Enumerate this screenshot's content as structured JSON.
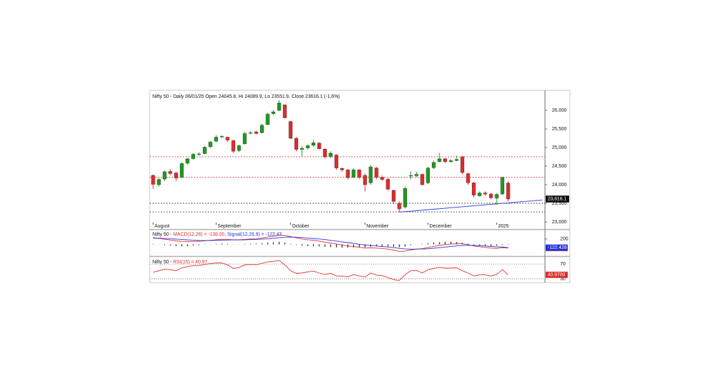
{
  "chart_data": [
    {
      "type": "candlestick",
      "title": "Nifty 50 - Daily 06/01/25 Open 24045.8, Hi 24089.9, Lo 23551.9, Close 23616.1 (-1.6%)",
      "categories": [
        "August",
        null,
        null,
        null,
        null,
        null,
        null,
        null,
        null,
        null,
        null,
        "September",
        null,
        null,
        null,
        null,
        null,
        null,
        null,
        null,
        null,
        null,
        null,
        null,
        "October",
        null,
        null,
        null,
        null,
        null,
        null,
        null,
        null,
        null,
        null,
        null,
        null,
        "November",
        null,
        null,
        null,
        null,
        null,
        null,
        null,
        null,
        null,
        null,
        "December",
        null,
        null,
        null,
        null,
        null,
        null,
        null,
        null,
        null,
        null,
        null,
        "2025",
        null,
        null
      ],
      "ohlc": [
        [
          24250,
          24280,
          23890,
          24010
        ],
        [
          24000,
          24180,
          23950,
          24140
        ],
        [
          24150,
          24380,
          24100,
          24350
        ],
        [
          24360,
          24420,
          24250,
          24300
        ],
        [
          24320,
          24340,
          24100,
          24180
        ],
        [
          24200,
          24600,
          24180,
          24570
        ],
        [
          24580,
          24720,
          24540,
          24700
        ],
        [
          24700,
          24850,
          24680,
          24820
        ],
        [
          24830,
          24870,
          24780,
          24830
        ],
        [
          24840,
          25040,
          24820,
          25010
        ],
        [
          25020,
          25170,
          24990,
          25150
        ],
        [
          25170,
          25330,
          25140,
          25280
        ],
        [
          25290,
          25330,
          25250,
          25300
        ],
        [
          25280,
          25290,
          25150,
          25200
        ],
        [
          25190,
          25200,
          24850,
          24900
        ],
        [
          24920,
          25080,
          24880,
          25050
        ],
        [
          25100,
          25420,
          25080,
          25380
        ],
        [
          25390,
          25440,
          25350,
          25400
        ],
        [
          25420,
          25450,
          25350,
          25380
        ],
        [
          25400,
          25640,
          25380,
          25600
        ],
        [
          25620,
          25930,
          25600,
          25900
        ],
        [
          25910,
          26010,
          25880,
          25960
        ],
        [
          26000,
          26277,
          25980,
          26200
        ],
        [
          26150,
          26160,
          25780,
          25800
        ],
        [
          25700,
          25720,
          25230,
          25250
        ],
        [
          25250,
          25280,
          24900,
          24950
        ],
        [
          24950,
          25030,
          24760,
          24980
        ],
        [
          24990,
          25090,
          24950,
          25050
        ],
        [
          25060,
          25200,
          25020,
          25130
        ],
        [
          25120,
          25150,
          24950,
          24970
        ],
        [
          24960,
          24980,
          24700,
          24750
        ],
        [
          24760,
          24900,
          24720,
          24850
        ],
        [
          24800,
          24820,
          24400,
          24450
        ],
        [
          24440,
          24460,
          24350,
          24400
        ],
        [
          24400,
          24420,
          24140,
          24190
        ],
        [
          24200,
          24440,
          24180,
          24400
        ],
        [
          24400,
          24420,
          24150,
          24200
        ],
        [
          24250,
          24300,
          23820,
          24000
        ],
        [
          24050,
          24530,
          24000,
          24480
        ],
        [
          24450,
          24480,
          24150,
          24200
        ],
        [
          24200,
          24250,
          24100,
          24140
        ],
        [
          24150,
          24170,
          23840,
          23880
        ],
        [
          23850,
          23870,
          23480,
          23550
        ],
        [
          23500,
          23560,
          23263,
          23350
        ],
        [
          23400,
          23950,
          23360,
          23900
        ],
        [
          24250,
          24350,
          24150,
          24250
        ],
        [
          24240,
          24350,
          24200,
          24280
        ],
        [
          24280,
          24300,
          23980,
          24000
        ],
        [
          24050,
          24480,
          24020,
          24450
        ],
        [
          24460,
          24650,
          24420,
          24600
        ],
        [
          24620,
          24857,
          24600,
          24700
        ],
        [
          24700,
          24720,
          24580,
          24620
        ],
        [
          24620,
          24690,
          24600,
          24650
        ],
        [
          24650,
          24780,
          24630,
          24680
        ],
        [
          24750,
          24780,
          24280,
          24330
        ],
        [
          24300,
          24320,
          24000,
          24050
        ],
        [
          24050,
          24080,
          23650,
          23720
        ],
        [
          23700,
          23820,
          23680,
          23780
        ],
        [
          23780,
          23820,
          23700,
          23750
        ],
        [
          23750,
          23780,
          23600,
          23650
        ],
        [
          23640,
          23780,
          23460,
          23740
        ],
        [
          23750,
          24220,
          23730,
          24190
        ],
        [
          24045.8,
          24089.9,
          23551.9,
          23616.1
        ]
      ],
      "up_color": "#1e9a1e",
      "down_color": "#e02a2a",
      "ylim": [
        22850,
        26540
      ],
      "yticks": [
        {
          "value": 23000,
          "label": "23,000"
        },
        {
          "value": 23500,
          "label": "23,500"
        },
        {
          "value": 24000,
          "label": "24,000"
        },
        {
          "value": 24500,
          "label": "24,500"
        },
        {
          "value": 25000,
          "label": "25,000"
        },
        {
          "value": 25500,
          "label": "25,500"
        },
        {
          "value": 26000,
          "label": "26,000"
        }
      ],
      "levels": [
        {
          "value": 24750,
          "color": "#e02a2a"
        },
        {
          "value": 24200,
          "color": "#e02a2a"
        },
        {
          "value": 23500,
          "color": "#333333"
        },
        {
          "value": 23270,
          "color": "#333333"
        }
      ],
      "trendline": {
        "x": [
          43,
          68
        ],
        "y": [
          23263,
          23590
        ],
        "color": "#2233dd"
      },
      "last_label": {
        "value": 23616.1,
        "label": "23,616.1"
      }
    },
    {
      "type": "line",
      "label": "Nifty 50 - ",
      "series": [
        {
          "name": "MACD(12,26) = -138.00,",
          "color": "#e02a2a",
          "value_label": "-138.000",
          "values": [
            250,
            220,
            190,
            160,
            130,
            110,
            100,
            105,
            115,
            130,
            150,
            170,
            185,
            185,
            170,
            170,
            185,
            200,
            210,
            235,
            270,
            300,
            340,
            330,
            290,
            240,
            200,
            170,
            150,
            120,
            80,
            50,
            10,
            -30,
            -60,
            -80,
            -110,
            -140,
            -130,
            -140,
            -150,
            -175,
            -215,
            -260,
            -250,
            -210,
            -175,
            -160,
            -120,
            -80,
            -40,
            -10,
            10,
            30,
            20,
            -10,
            -60,
            -90,
            -115,
            -140,
            -150,
            -125,
            -138
          ]
        },
        {
          "name": "Signal(12,26,9) = -122.43",
          "color": "#2233dd",
          "value_label": "-122.428",
          "values": [
            230,
            228,
            220,
            210,
            195,
            180,
            165,
            155,
            145,
            142,
            143,
            148,
            155,
            160,
            162,
            164,
            168,
            175,
            182,
            193,
            208,
            226,
            249,
            265,
            270,
            264,
            251,
            235,
            218,
            198,
            175,
            150,
            122,
            92,
            62,
            34,
            5,
            -24,
            -45,
            -64,
            -81,
            -100,
            -123,
            -150,
            -170,
            -178,
            -177,
            -174,
            -163,
            -146,
            -125,
            -102,
            -80,
            -58,
            -42,
            -36,
            -41,
            -51,
            -64,
            -79,
            -93,
            -100,
            -122.428
          ]
        }
      ],
      "histogram": {
        "color": "#222222",
        "values": [
          20,
          -8,
          -30,
          -50,
          -65,
          -70,
          -65,
          -50,
          -30,
          -12,
          7,
          22,
          30,
          25,
          8,
          6,
          17,
          25,
          28,
          42,
          62,
          74,
          91,
          65,
          20,
          -24,
          -51,
          -65,
          -68,
          -78,
          -95,
          -100,
          -112,
          -122,
          -122,
          -114,
          -115,
          -116,
          -85,
          -76,
          -69,
          -75,
          -92,
          -110,
          -80,
          -32,
          2,
          14,
          43,
          66,
          85,
          92,
          90,
          88,
          62,
          26,
          -19,
          -39,
          -51,
          -61,
          -57,
          -25,
          -15.572
        ]
      },
      "ylim": [
        -400,
        500
      ],
      "yticks": [
        200
      ]
    },
    {
      "type": "line",
      "label": "Nifty 50 - ",
      "series": [
        {
          "name": "RSI(15) = 40.97",
          "color": "#e02a2a",
          "value_label": "40.9700",
          "values": [
            48,
            52,
            56,
            55,
            52,
            60,
            63,
            66,
            66,
            69,
            71,
            73,
            73,
            68,
            58,
            61,
            68,
            69,
            68,
            72,
            76,
            77,
            80,
            68,
            52,
            45,
            46,
            49,
            51,
            46,
            42,
            45,
            38,
            38,
            35,
            42,
            38,
            35,
            46,
            40,
            39,
            34,
            28,
            26,
            42,
            52,
            53,
            46,
            55,
            58,
            61,
            59,
            59,
            60,
            52,
            46,
            38,
            41,
            41,
            38,
            42,
            55,
            40.97
          ]
        }
      ],
      "ylim": [
        20,
        85
      ],
      "yticks": [
        70,
        30
      ],
      "grid": true
    }
  ]
}
